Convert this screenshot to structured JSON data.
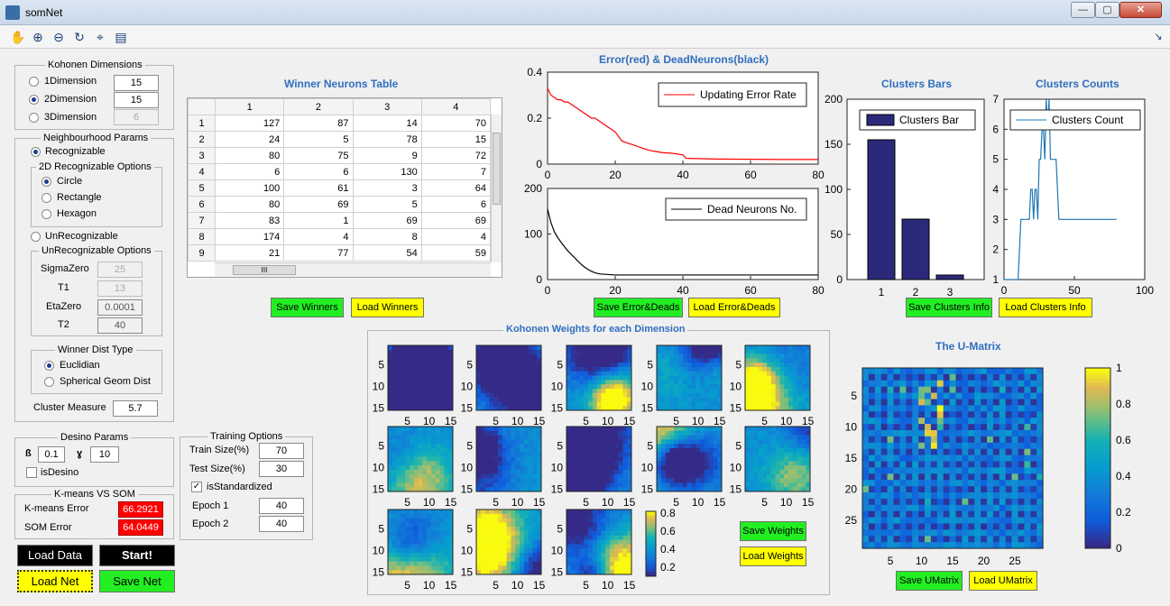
{
  "window": {
    "title": "somNet",
    "min_label": "—",
    "max_label": "▢",
    "close_label": "✕"
  },
  "toolbar": {
    "icons": [
      "pan-icon",
      "zoom-in-icon",
      "zoom-out-icon",
      "rotate-icon",
      "data-cursor-icon",
      "legend-icon"
    ],
    "glyphs": [
      "✋",
      "⊕",
      "⊖",
      "↻",
      "⌖",
      "▤"
    ],
    "dock_glyph": "↘"
  },
  "kohonen": {
    "title": "Kohonen Dimensions",
    "dims": [
      {
        "label": "1Dimension",
        "value": "15",
        "selected": false,
        "enabled": true
      },
      {
        "label": "2Dimension",
        "value": "15",
        "selected": true,
        "enabled": true
      },
      {
        "label": "3Dimension",
        "value": "6",
        "selected": false,
        "enabled": false
      }
    ]
  },
  "neighbourhood": {
    "title": "Neighbourhood Params",
    "recognizable_label": "Recognizable",
    "options2d_title": "2D Recognizable Options",
    "options2d": [
      {
        "label": "Circle",
        "selected": true
      },
      {
        "label": "Rectangle",
        "selected": false
      },
      {
        "label": "Hexagon",
        "selected": false
      }
    ],
    "unrecognizable_label": "UnRecognizable",
    "unrec_title": "UnRecognizable Options",
    "params": [
      {
        "label": "SigmaZero",
        "value": "25"
      },
      {
        "label": "T1",
        "value": "13"
      },
      {
        "label": "EtaZero",
        "value": "0.0001"
      },
      {
        "label": "T2",
        "value": "40"
      }
    ],
    "winner_title": "Winner Dist Type",
    "winner": [
      {
        "label": "Euclidian",
        "selected": true
      },
      {
        "label": "Spherical Geom Dist",
        "selected": false
      }
    ],
    "cluster_measure_label": "Cluster Measure",
    "cluster_measure_value": "5.7"
  },
  "desino": {
    "title": "Desino Params",
    "beta_label": "ß",
    "beta_value": "0.1",
    "gamma_label": "ɣ",
    "gamma_value": "10",
    "check_label": "isDesino"
  },
  "kmeans": {
    "title": "K-means VS SOM",
    "kmeans_label": "K-means Error",
    "kmeans_value": "66.2921",
    "som_label": "SOM Error",
    "som_value": "64.0449"
  },
  "buttons": {
    "load_data": "Load Data",
    "start": "Start!",
    "load_net": "Load Net",
    "save_net": "Save Net",
    "save_winners": "Save Winners",
    "load_winners": "Load Winners",
    "save_error": "Save Error&Deads",
    "load_error": "Load Error&Deads",
    "save_clusters": "Save Clusters Info",
    "load_clusters": "Load Clusters Info",
    "save_weights": "Save Weights",
    "load_weights": "Load Weights",
    "save_umatrix": "Save UMatrix",
    "load_umatrix": "Load UMatrix"
  },
  "training": {
    "title": "Training Options",
    "train_label": "Train Size(%)",
    "train_value": "70",
    "test_label": "Test Size(%)",
    "test_value": "30",
    "standardized_label": "isStandardized",
    "standardized_mark": "✓",
    "epoch1_label": "Epoch 1",
    "epoch1_value": "40",
    "epoch2_label": "Epoch 2",
    "epoch2_value": "40"
  },
  "winners_table": {
    "title": "Winner Neurons Table",
    "columns": [
      "1",
      "2",
      "3",
      "4"
    ],
    "rows": [
      {
        "id": "1",
        "cells": [
          "127",
          "87",
          "14",
          "70"
        ]
      },
      {
        "id": "2",
        "cells": [
          "24",
          "5",
          "78",
          "15"
        ]
      },
      {
        "id": "3",
        "cells": [
          "80",
          "75",
          "9",
          "72"
        ]
      },
      {
        "id": "4",
        "cells": [
          "6",
          "6",
          "130",
          "7"
        ]
      },
      {
        "id": "5",
        "cells": [
          "100",
          "61",
          "3",
          "64"
        ]
      },
      {
        "id": "6",
        "cells": [
          "80",
          "69",
          "5",
          "6"
        ]
      },
      {
        "id": "7",
        "cells": [
          "83",
          "1",
          "69",
          "69"
        ]
      },
      {
        "id": "8",
        "cells": [
          "174",
          "4",
          "8",
          "4"
        ]
      },
      {
        "id": "9",
        "cells": [
          "21",
          "77",
          "54",
          "59"
        ]
      }
    ],
    "hscroll_grip": "III"
  },
  "chart_data": [
    {
      "type": "line",
      "title": "Error(red) & DeadNeurons(black)",
      "x": [
        0,
        1,
        2,
        3,
        4,
        5,
        6,
        7,
        8,
        9,
        10,
        11,
        12,
        13,
        14,
        15,
        16,
        17,
        18,
        19,
        20,
        21,
        22,
        24,
        26,
        28,
        30,
        32,
        34,
        36,
        38,
        40,
        41,
        50,
        60,
        70,
        80
      ],
      "series": [
        {
          "name": "Updating Error Rate",
          "color": "#ff0000",
          "values": [
            0.33,
            0.3,
            0.29,
            0.28,
            0.28,
            0.27,
            0.27,
            0.26,
            0.25,
            0.24,
            0.23,
            0.22,
            0.21,
            0.2,
            0.2,
            0.19,
            0.18,
            0.17,
            0.16,
            0.15,
            0.14,
            0.12,
            0.1,
            0.09,
            0.08,
            0.07,
            0.06,
            0.055,
            0.05,
            0.048,
            0.045,
            0.04,
            0.025,
            0.022,
            0.021,
            0.02,
            0.02
          ]
        }
      ],
      "xlim": [
        0,
        80
      ],
      "ylim": [
        0,
        0.4
      ],
      "xticks": [
        "0",
        "20",
        "40",
        "60",
        "80"
      ],
      "yticks": [
        "0",
        "0.2",
        "0.4"
      ]
    },
    {
      "type": "line",
      "x": [
        0,
        1,
        2,
        3,
        4,
        5,
        6,
        7,
        8,
        9,
        10,
        11,
        12,
        13,
        14,
        15,
        16,
        18,
        20,
        80
      ],
      "series": [
        {
          "name": "Dead Neurons No.",
          "color": "#000000",
          "values": [
            155,
            125,
            105,
            92,
            82,
            72,
            63,
            55,
            48,
            40,
            33,
            27,
            22,
            18,
            15,
            13,
            12,
            11,
            10,
            10
          ]
        }
      ],
      "xlim": [
        0,
        80
      ],
      "ylim": [
        0,
        200
      ],
      "xticks": [
        "0",
        "20",
        "40",
        "60",
        "80"
      ],
      "yticks": [
        "0",
        "100",
        "200"
      ]
    },
    {
      "type": "bar",
      "title": "Clusters Bars",
      "categories": [
        "1",
        "2",
        "3"
      ],
      "values": [
        155,
        67,
        5
      ],
      "series_name": "Clusters Bar",
      "color": "#2b2a7a",
      "ylim": [
        0,
        200
      ],
      "yticks": [
        "0",
        "50",
        "100",
        "150",
        "200"
      ]
    },
    {
      "type": "line",
      "title": "Clusters Counts",
      "x": [
        0,
        10,
        11,
        12,
        13,
        14,
        15,
        16,
        17,
        18,
        19,
        20,
        21,
        22,
        23,
        24,
        25,
        26,
        27,
        28,
        29,
        30,
        31,
        32,
        33,
        34,
        35,
        36,
        37,
        38,
        39,
        40,
        80
      ],
      "series": [
        {
          "name": "Clusters Count",
          "color": "#1f77b4",
          "values": [
            1,
            1,
            2,
            3,
            3,
            3,
            3,
            3,
            3,
            3,
            4,
            4,
            3,
            4,
            4,
            3,
            5,
            5,
            6,
            6,
            5,
            7,
            6,
            7,
            5,
            5,
            5,
            5,
            5,
            4,
            3,
            3,
            3
          ]
        }
      ],
      "xlim": [
        0,
        100
      ],
      "ylim": [
        1,
        7
      ],
      "xticks": [
        "0",
        "50",
        "100"
      ],
      "yticks": [
        "1",
        "2",
        "3",
        "4",
        "5",
        "6",
        "7"
      ]
    },
    {
      "type": "heatmap",
      "title": "Kohonen Weights for each Dimension",
      "panels": 13,
      "grid": [
        15,
        15
      ],
      "colorbar": [
        "0.8",
        "0.6",
        "0.4",
        "0.2"
      ],
      "clim": [
        0.2,
        0.85
      ],
      "xticks": [
        "5",
        "10",
        "15"
      ],
      "yticks": [
        "5",
        "10",
        "15"
      ],
      "colormap": "parula"
    },
    {
      "type": "heatmap",
      "title": "The U-Matrix",
      "grid": [
        29,
        29
      ],
      "clim": [
        0,
        1
      ],
      "xticks": [
        "5",
        "10",
        "15",
        "20",
        "25"
      ],
      "yticks": [
        "5",
        "10",
        "15",
        "20",
        "25"
      ],
      "colorbar": [
        "1",
        "0.8",
        "0.6",
        "0.4",
        "0.2",
        "0"
      ],
      "colormap": "parula"
    }
  ]
}
